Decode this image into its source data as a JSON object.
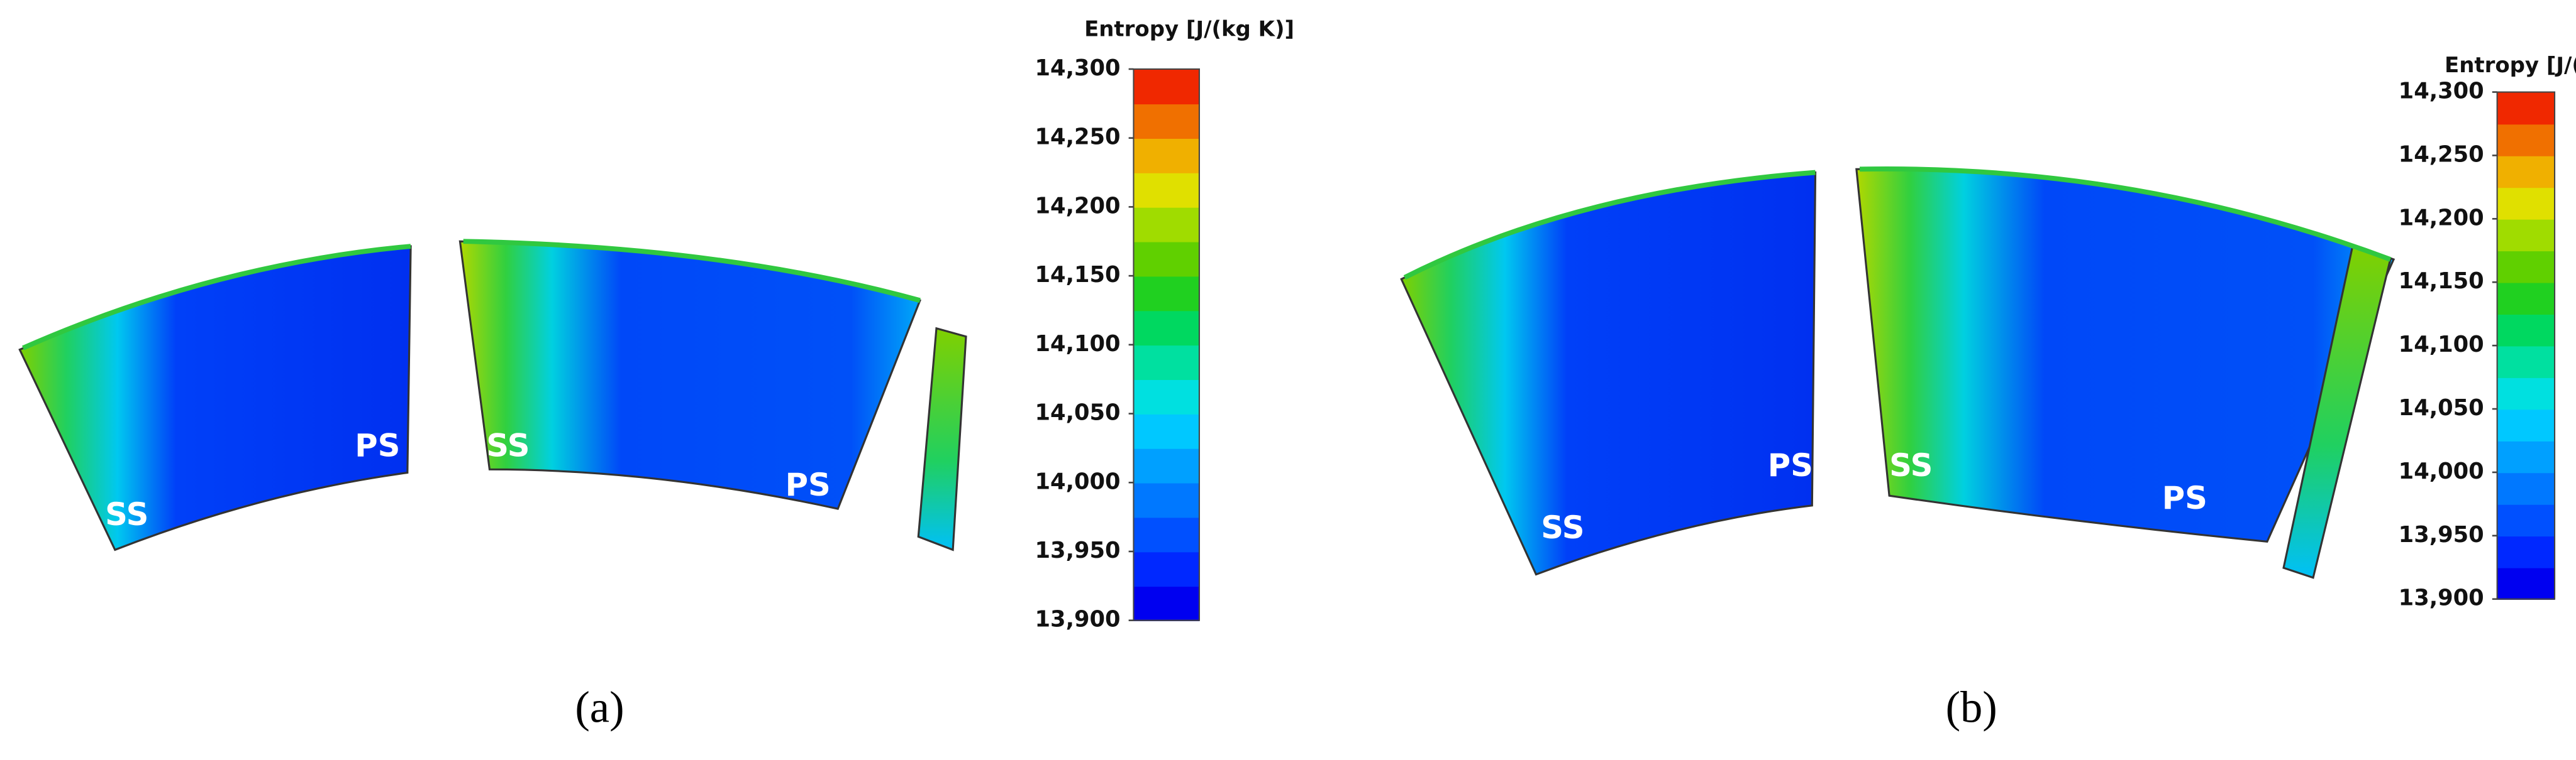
{
  "panels": [
    {
      "caption": "(a)",
      "colorbar": {
        "title": "Entropy [J/(kg K)]",
        "range": [
          13900,
          14300
        ],
        "ticks": [
          {
            "value": 14300,
            "label": "14,300"
          },
          {
            "value": 14250,
            "label": "14,250"
          },
          {
            "value": 14200,
            "label": "14,200"
          },
          {
            "value": 14150,
            "label": "14,150"
          },
          {
            "value": 14100,
            "label": "14,100"
          },
          {
            "value": 14050,
            "label": "14,050"
          },
          {
            "value": 14000,
            "label": "14,000"
          },
          {
            "value": 13950,
            "label": "13,950"
          },
          {
            "value": 13900,
            "label": "13,900"
          }
        ]
      },
      "labels": [
        "SS",
        "PS",
        "SS",
        "PS"
      ]
    },
    {
      "caption": "(b)",
      "colorbar": {
        "title": "Entropy [J/(kg K)]",
        "range": [
          13900,
          14300
        ],
        "ticks": [
          {
            "value": 14300,
            "label": "14,300"
          },
          {
            "value": 14250,
            "label": "14,250"
          },
          {
            "value": 14200,
            "label": "14,200"
          },
          {
            "value": 14150,
            "label": "14,150"
          },
          {
            "value": 14100,
            "label": "14,100"
          },
          {
            "value": 14050,
            "label": "14,050"
          },
          {
            "value": 14000,
            "label": "14,000"
          },
          {
            "value": 13950,
            "label": "13,950"
          },
          {
            "value": 13900,
            "label": "13,900"
          }
        ]
      },
      "labels": [
        "SS",
        "PS",
        "SS",
        "PS"
      ]
    }
  ]
}
